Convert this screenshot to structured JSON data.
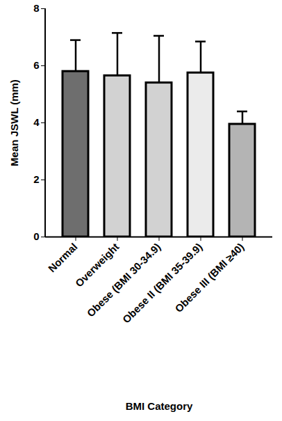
{
  "chart_data": {
    "type": "bar",
    "y_label": "Mean JSWL (mm)",
    "x_label": "BMI Category",
    "categories": [
      "Normal",
      "Overweight",
      "Obese (BMI 30-34.9)",
      "Obese II (BMI 35-39.9)",
      "Obese III (BMI ≥40)"
    ],
    "values": [
      5.8,
      5.65,
      5.4,
      5.75,
      3.95
    ],
    "errors": [
      1.1,
      1.5,
      1.65,
      1.1,
      0.45
    ],
    "colors": [
      "#6e6e6e",
      "#d2d2d2",
      "#d2d2d2",
      "#ebebeb",
      "#b4b4b4"
    ],
    "ylim": [
      0,
      8
    ],
    "yticks": [
      0,
      2,
      4,
      6,
      8
    ],
    "grid": false
  }
}
